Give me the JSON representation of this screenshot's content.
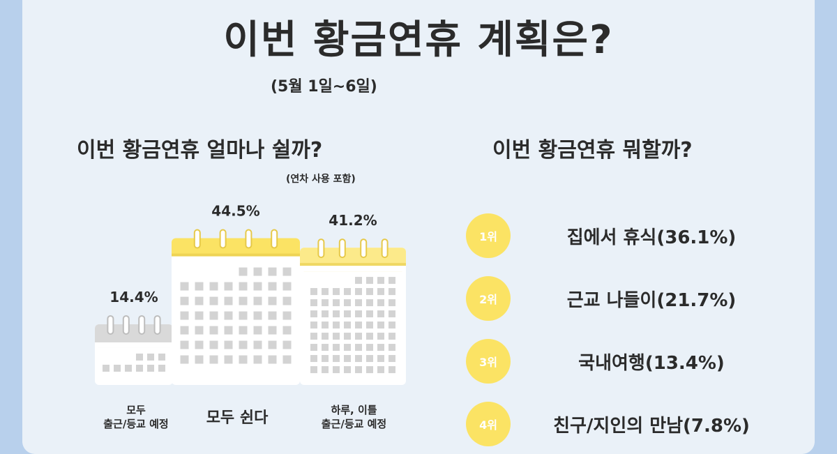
{
  "header": {
    "title": "이번 황금연휴 계획은?",
    "date_range": "(5월 1일~6일)"
  },
  "left_section": {
    "title": "이번 황금연휴 얼마나 쉴까?",
    "note": "(연차 사용 포함)"
  },
  "right_section": {
    "title": "이번 황금연휴 뭐할까?",
    "ranking": [
      {
        "rank": "1위",
        "text": "집에서 휴식(36.1%)"
      },
      {
        "rank": "2위",
        "text": "근교 나들이(21.7%)"
      },
      {
        "rank": "3위",
        "text": "국내여행(13.4%)"
      },
      {
        "rank": "4위",
        "text": "친구/지인의 만남(7.8%)"
      }
    ]
  },
  "colors": {
    "yellow": "#fbe364",
    "gray_header": "#d9d9d9",
    "grid_cell": "#d3d3d3",
    "background": "#eaf1f8",
    "frame": "#b8d0ec"
  },
  "icons": [
    "calendar-icon",
    "calendar-icon",
    "calendar-icon"
  ],
  "chart_data": {
    "type": "bar",
    "categories": [
      "모두 출근/등교 예정",
      "모두 쉰다",
      "하루, 이틀 출근/등교 예정"
    ],
    "category_lines": [
      [
        "모두",
        "출근/등교 예정"
      ],
      [
        "모두 쉰다"
      ],
      [
        "하루, 이틀",
        "출근/등교 예정"
      ]
    ],
    "values": [
      14.4,
      44.5,
      41.2
    ],
    "value_labels": [
      "14.4%",
      "44.5%",
      "41.2%"
    ],
    "unit": "%",
    "bar_style": "calendar"
  }
}
